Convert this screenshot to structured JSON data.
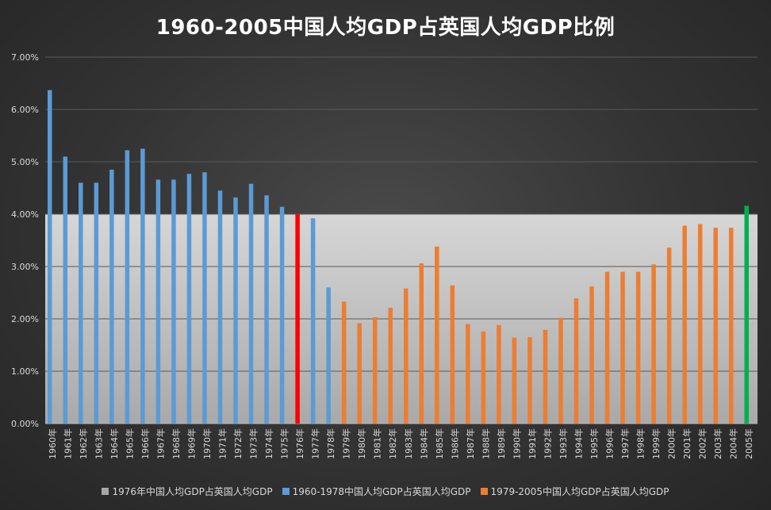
{
  "chart_data": {
    "type": "bar",
    "title": "1960-2005中国人均GDP占英国人均GDP比例",
    "categories": [
      "1960年",
      "1961年",
      "1962年",
      "1963年",
      "1964年",
      "1965年",
      "1966年",
      "1967年",
      "1968年",
      "1969年",
      "1970年",
      "1971年",
      "1972年",
      "1973年",
      "1974年",
      "1975年",
      "1976年",
      "1977年",
      "1978年",
      "1979年",
      "1980年",
      "1981年",
      "1982年",
      "1983年",
      "1984年",
      "1985年",
      "1986年",
      "1987年",
      "1988年",
      "1989年",
      "1990年",
      "1991年",
      "1992年",
      "1993年",
      "1994年",
      "1995年",
      "1996年",
      "1997年",
      "1998年",
      "1999年",
      "2000年",
      "2001年",
      "2002年",
      "2003年",
      "2004年",
      "2005年"
    ],
    "values": [
      6.37,
      5.1,
      4.6,
      4.6,
      4.85,
      5.22,
      5.25,
      4.66,
      4.66,
      4.77,
      4.8,
      4.45,
      4.32,
      4.58,
      4.36,
      4.14,
      4.0,
      3.92,
      2.6,
      2.33,
      1.92,
      2.03,
      2.21,
      2.58,
      3.06,
      3.38,
      2.64,
      1.9,
      1.76,
      1.88,
      1.64,
      1.65,
      1.79,
      2.02,
      2.39,
      2.62,
      2.9,
      2.9,
      2.9,
      3.04,
      3.36,
      3.78,
      3.81,
      3.74,
      3.74,
      4.16
    ],
    "highlight_band": {
      "value": 4.0,
      "color": "#c8c8c8"
    },
    "ylim": [
      0,
      7
    ],
    "yticks": [
      "0.00%",
      "1.00%",
      "2.00%",
      "3.00%",
      "4.00%",
      "5.00%",
      "6.00%",
      "7.00%"
    ],
    "xlabel": "",
    "ylabel": "",
    "grid": true,
    "legend_position": "bottom",
    "colors": {
      "blue": "#5b9bd5",
      "orange": "#ed7d31",
      "red": "#ff0000",
      "green": "#00b050",
      "band": "#c8c8c8"
    },
    "series": [
      {
        "name": "1976年中国人均GDP占英国人均GDP",
        "color": "#a6a6a6"
      },
      {
        "name": "1960-1978中国人均GDP占英国人均GDP",
        "color": "#5b9bd5"
      },
      {
        "name": "1979-2005中国人均GDP占英国人均GDP",
        "color": "#ed7d31"
      }
    ]
  }
}
